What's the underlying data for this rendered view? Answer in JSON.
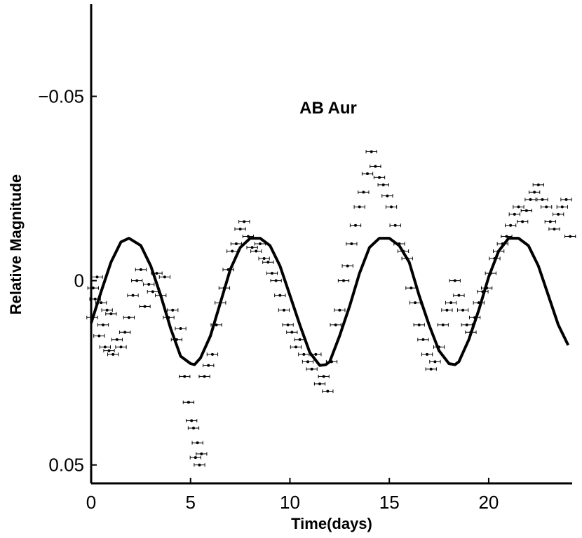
{
  "chart_data": {
    "type": "scatter",
    "title": "AB Aur",
    "xlabel": "Time(days)",
    "ylabel": "Relative Magnitude",
    "xlim": [
      0,
      24.2
    ],
    "ylim": [
      -0.075,
      0.055
    ],
    "y_inverted": true,
    "grid": false,
    "x_ticks": [
      0,
      5,
      10,
      15,
      20
    ],
    "x_tick_labels": [
      "0",
      "5",
      "10",
      "15",
      "20"
    ],
    "y_ticks": [
      -0.05,
      0,
      0.05
    ],
    "y_tick_labels": [
      "−0.05",
      "0",
      "0.05"
    ],
    "colors": {
      "points": "#000000",
      "fit_curve": "#000000",
      "axes": "#000000"
    },
    "series": [
      {
        "kind": "points",
        "error_bar_half_width": 0.0005,
        "x": [
          0.05,
          0.1,
          0.2,
          0.3,
          0.4,
          0.5,
          0.6,
          0.7,
          0.8,
          0.9,
          1.0,
          1.1,
          1.3,
          1.5,
          1.7,
          1.9,
          2.1,
          2.3,
          2.5,
          2.7,
          2.9,
          3.1,
          3.3,
          3.5,
          3.7,
          3.9,
          4.1,
          4.3,
          4.5,
          4.7,
          4.9,
          5.05,
          5.15,
          5.25,
          5.35,
          5.45,
          5.55,
          5.7,
          5.9,
          6.1,
          6.3,
          6.5,
          6.7,
          6.9,
          7.1,
          7.3,
          7.5,
          7.7,
          7.9,
          8.1,
          8.3,
          8.5,
          8.7,
          8.9,
          9.1,
          9.3,
          9.5,
          9.7,
          9.9,
          10.1,
          10.3,
          10.5,
          10.7,
          10.9,
          11.1,
          11.3,
          11.5,
          11.7,
          11.9,
          12.1,
          12.3,
          12.5,
          12.7,
          12.9,
          13.1,
          13.3,
          13.5,
          13.7,
          13.9,
          14.1,
          14.3,
          14.5,
          14.7,
          14.9,
          15.1,
          15.3,
          15.5,
          15.7,
          15.9,
          16.1,
          16.3,
          16.5,
          16.7,
          16.9,
          17.1,
          17.3,
          17.5,
          17.7,
          17.9,
          18.1,
          18.3,
          18.5,
          18.7,
          18.9,
          19.1,
          19.3,
          19.5,
          19.7,
          19.9,
          20.1,
          20.3,
          20.5,
          20.7,
          20.9,
          21.1,
          21.3,
          21.5,
          21.7,
          21.9,
          22.1,
          22.3,
          22.5,
          22.7,
          22.9,
          23.1,
          23.3,
          23.5,
          23.7,
          23.9,
          24.1
        ],
        "y": [
          0.01,
          0.002,
          0.005,
          -0.001,
          0.015,
          0.006,
          0.012,
          0.018,
          0.008,
          0.019,
          0.009,
          0.02,
          0.016,
          0.018,
          0.014,
          0.01,
          0.004,
          0.0,
          -0.003,
          0.007,
          0.001,
          0.003,
          -0.002,
          0.004,
          -0.001,
          0.01,
          0.008,
          0.016,
          0.013,
          0.026,
          0.033,
          0.038,
          0.04,
          0.048,
          0.044,
          0.05,
          0.047,
          0.026,
          0.023,
          0.02,
          0.012,
          0.006,
          0.002,
          -0.003,
          -0.008,
          -0.01,
          -0.014,
          -0.016,
          -0.012,
          -0.009,
          -0.008,
          -0.01,
          -0.006,
          -0.005,
          -0.002,
          0.0,
          0.004,
          0.008,
          0.012,
          0.014,
          0.018,
          0.016,
          0.02,
          0.022,
          0.024,
          0.02,
          0.028,
          0.026,
          0.03,
          0.022,
          0.012,
          0.008,
          0.0,
          -0.004,
          -0.01,
          -0.015,
          -0.02,
          -0.024,
          -0.029,
          -0.035,
          -0.031,
          -0.028,
          -0.026,
          -0.023,
          -0.02,
          -0.015,
          -0.01,
          -0.008,
          -0.006,
          0.002,
          0.006,
          0.012,
          0.016,
          0.02,
          0.024,
          0.022,
          0.018,
          0.012,
          0.008,
          0.006,
          0.0,
          0.004,
          0.008,
          0.012,
          0.014,
          0.01,
          0.006,
          0.003,
          0.002,
          -0.002,
          -0.006,
          -0.008,
          -0.01,
          -0.012,
          -0.015,
          -0.018,
          -0.02,
          -0.016,
          -0.019,
          -0.022,
          -0.024,
          -0.026,
          -0.022,
          -0.02,
          -0.016,
          -0.014,
          -0.018,
          -0.02,
          -0.022,
          -0.012
        ]
      },
      {
        "kind": "fit-curve",
        "x": [
          0.0,
          0.5,
          1.0,
          1.5,
          1.9,
          2.5,
          3.0,
          3.5,
          4.0,
          4.5,
          5.0,
          5.2,
          5.5,
          6.0,
          6.5,
          7.0,
          7.5,
          8.0,
          8.5,
          9.0,
          9.5,
          10.0,
          10.5,
          11.0,
          11.5,
          11.8,
          12.0,
          12.5,
          13.0,
          13.5,
          14.0,
          14.5,
          15.0,
          15.5,
          16.0,
          16.5,
          17.0,
          17.5,
          18.0,
          18.3,
          18.5,
          19.0,
          19.5,
          20.0,
          20.5,
          21.0,
          21.5,
          22.0,
          22.5,
          23.0,
          23.5,
          24.0
        ],
        "y": [
          0.0115,
          0.003,
          -0.005,
          -0.0105,
          -0.0115,
          -0.0095,
          -0.004,
          0.004,
          0.013,
          0.0205,
          0.0225,
          0.0228,
          0.021,
          0.015,
          0.006,
          -0.003,
          -0.009,
          -0.0115,
          -0.0115,
          -0.0095,
          -0.004,
          0.004,
          0.012,
          0.0195,
          0.023,
          0.0228,
          0.022,
          0.015,
          0.007,
          -0.002,
          -0.009,
          -0.0115,
          -0.0115,
          -0.0095,
          -0.005,
          0.004,
          0.012,
          0.019,
          0.0225,
          0.0228,
          0.022,
          0.016,
          0.008,
          -0.001,
          -0.008,
          -0.0115,
          -0.0115,
          -0.0095,
          -0.004,
          0.004,
          0.012,
          0.0175
        ]
      }
    ]
  }
}
